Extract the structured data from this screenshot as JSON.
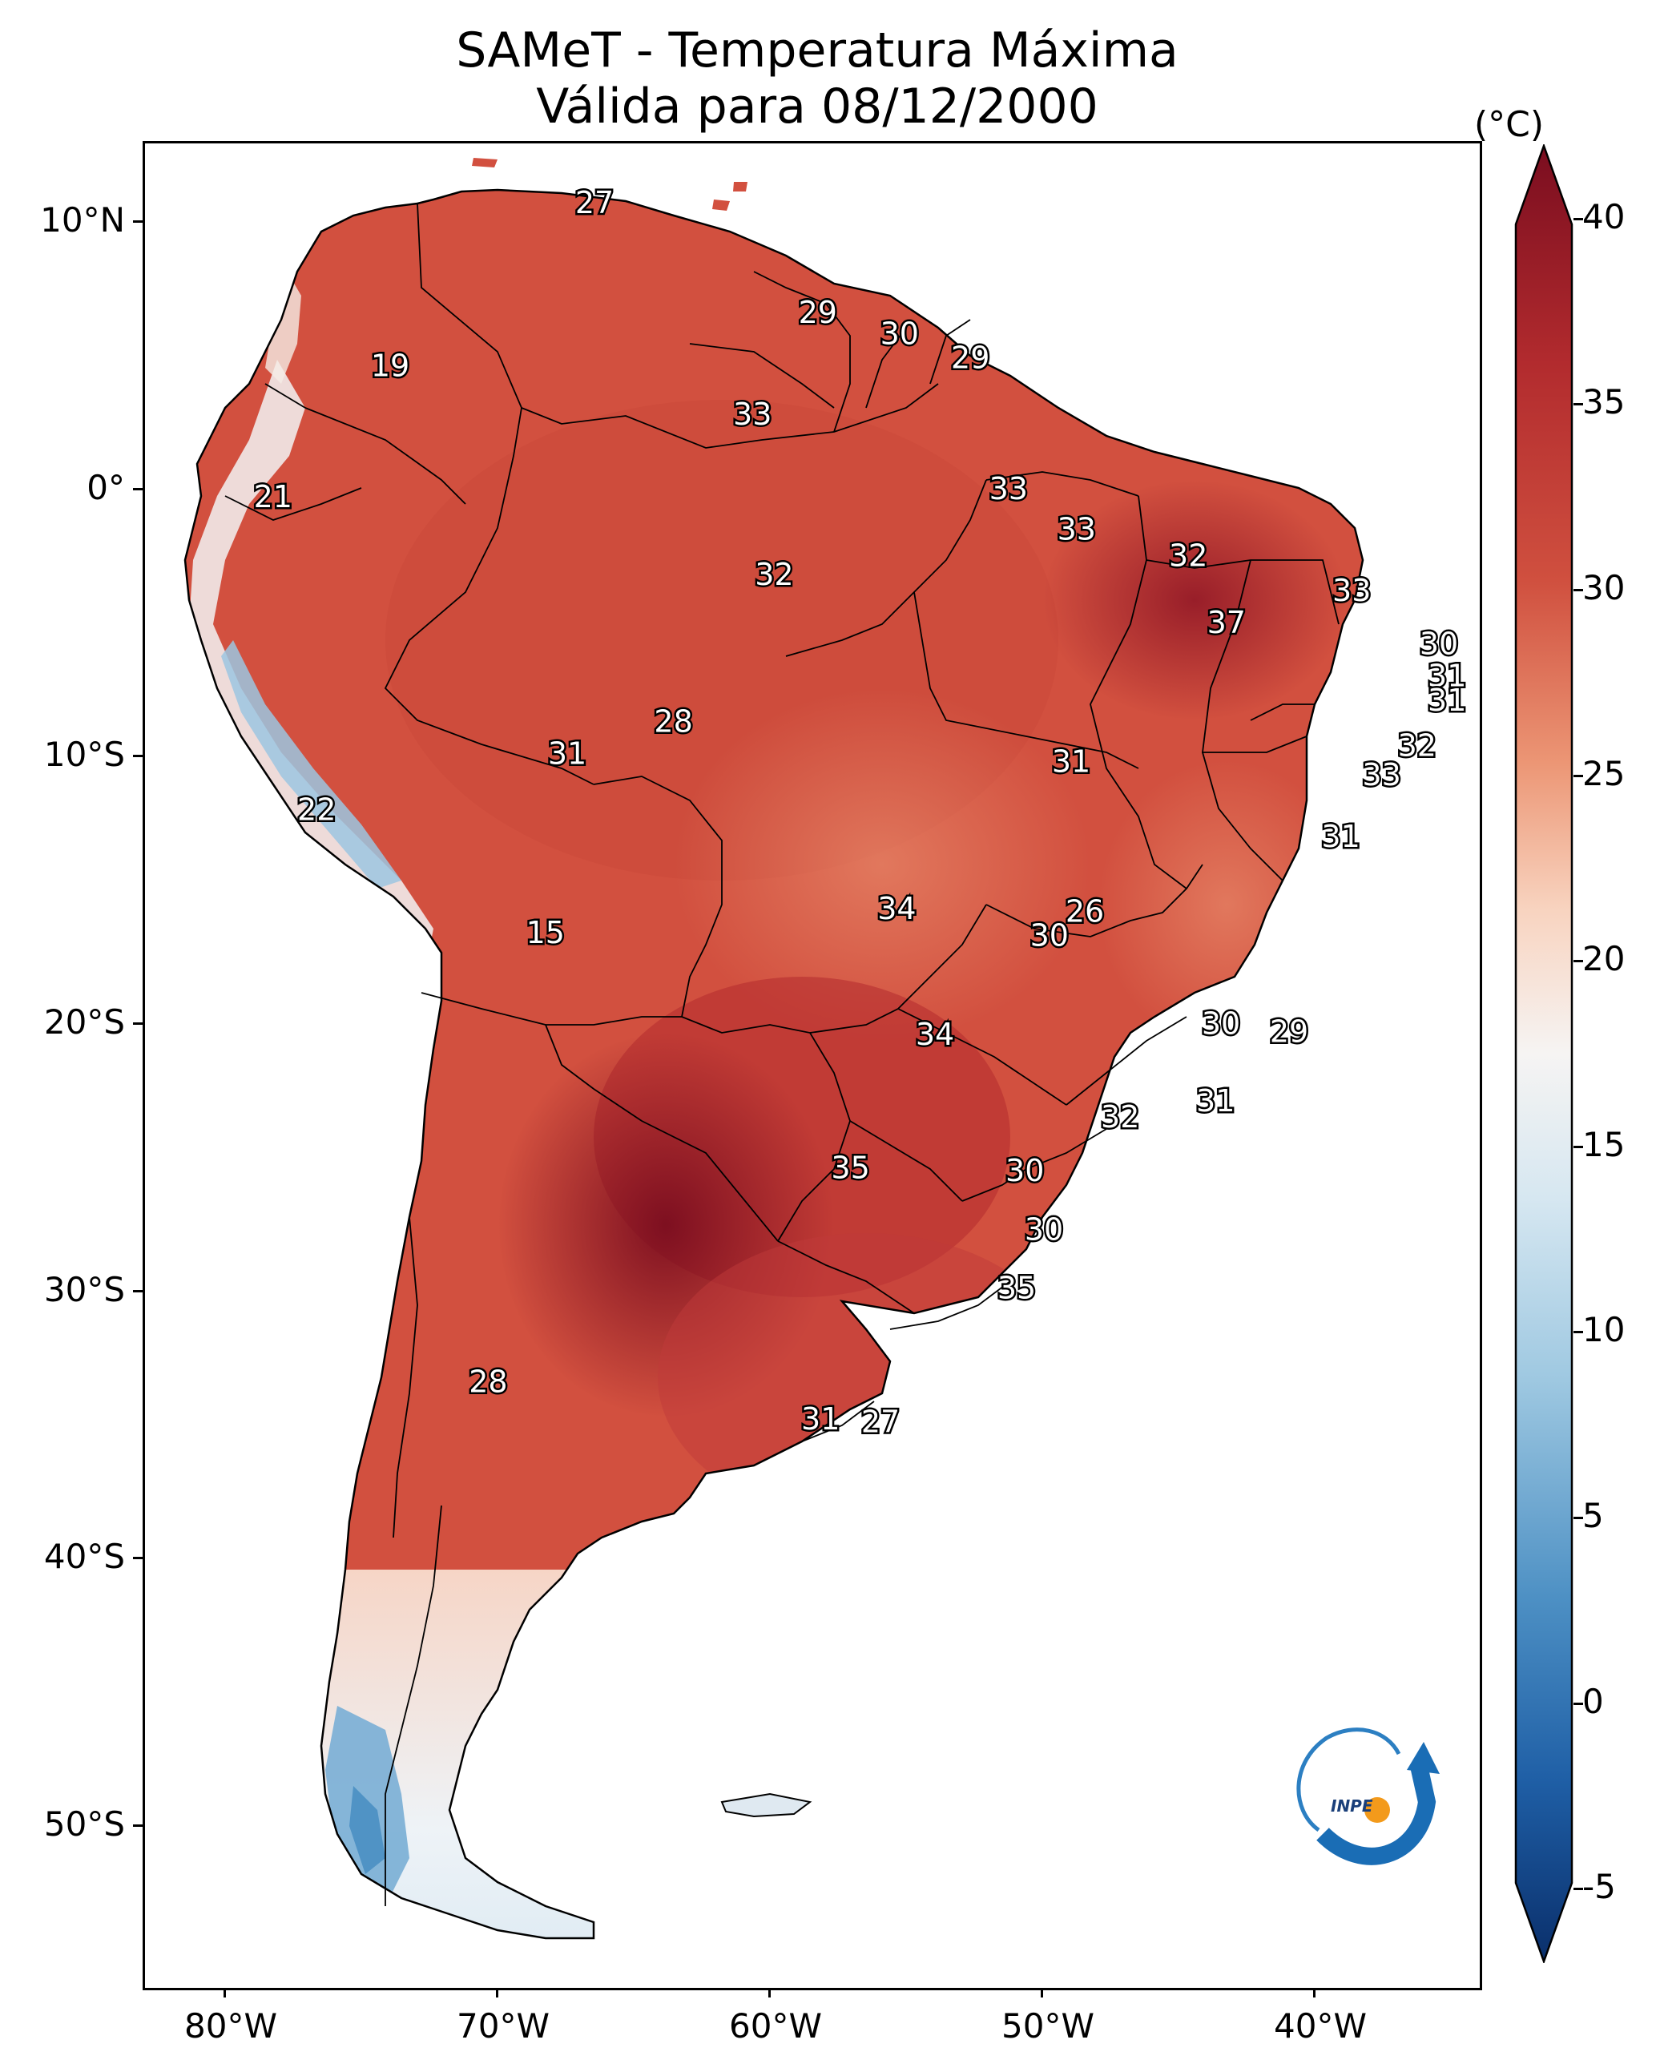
{
  "title_line1": "SAMeT - Temperatura Máxima",
  "title_line2": "Válida para 08/12/2000",
  "colorbar": {
    "unit": "(°C)",
    "ticks": [
      "40",
      "35",
      "30",
      "25",
      "20",
      "15",
      "10",
      "5",
      "0",
      "-5"
    ],
    "min": -7,
    "max": 42,
    "colors": [
      "#0a2f6b",
      "#1f5fa6",
      "#4a8fc3",
      "#9cc6e0",
      "#e6eff6",
      "#fbe8dd",
      "#f3b99a",
      "#e1765c",
      "#c63b34",
      "#7a0d1f"
    ]
  },
  "longitude_labels": [
    "80°W",
    "70°W",
    "60°W",
    "50°W",
    "40°W"
  ],
  "latitude_labels": [
    "10°N",
    "0°",
    "10°S",
    "20°S",
    "30°S",
    "40°S",
    "50°S"
  ],
  "extent": {
    "lon_min": -83,
    "lon_max": -34,
    "lat_min": -56,
    "lat_max": 13
  },
  "point_labels": [
    {
      "text": "27",
      "lon": -66.5,
      "lat": 10.7
    },
    {
      "text": "19",
      "lon": -74.0,
      "lat": 4.6
    },
    {
      "text": "29",
      "lon": -58.3,
      "lat": 6.6
    },
    {
      "text": "30",
      "lon": -55.3,
      "lat": 5.8
    },
    {
      "text": "29",
      "lon": -52.7,
      "lat": 4.9
    },
    {
      "text": "33",
      "lon": -60.7,
      "lat": 2.8
    },
    {
      "text": "21",
      "lon": -78.3,
      "lat": -0.3
    },
    {
      "text": "33",
      "lon": -51.3,
      "lat": 0.0
    },
    {
      "text": "33",
      "lon": -48.8,
      "lat": -1.5
    },
    {
      "text": "32",
      "lon": -59.9,
      "lat": -3.2
    },
    {
      "text": "32",
      "lon": -44.7,
      "lat": -2.5
    },
    {
      "text": "33",
      "lon": -38.7,
      "lat": -3.8
    },
    {
      "text": "37",
      "lon": -43.3,
      "lat": -5.0
    },
    {
      "text": "30",
      "lon": -35.5,
      "lat": -5.8
    },
    {
      "text": "31",
      "lon": -35.2,
      "lat": -7.0
    },
    {
      "text": "31",
      "lon": -35.2,
      "lat": -7.9
    },
    {
      "text": "28",
      "lon": -63.6,
      "lat": -8.7
    },
    {
      "text": "31",
      "lon": -67.5,
      "lat": -9.9
    },
    {
      "text": "31",
      "lon": -49.0,
      "lat": -10.2
    },
    {
      "text": "32",
      "lon": -36.3,
      "lat": -9.6
    },
    {
      "text": "33",
      "lon": -37.6,
      "lat": -10.7
    },
    {
      "text": "22",
      "lon": -76.7,
      "lat": -12.0
    },
    {
      "text": "31",
      "lon": -39.1,
      "lat": -13.0
    },
    {
      "text": "34",
      "lon": -55.4,
      "lat": -15.7
    },
    {
      "text": "26",
      "lon": -48.5,
      "lat": -15.8
    },
    {
      "text": "30",
      "lon": -49.8,
      "lat": -16.7
    },
    {
      "text": "15",
      "lon": -68.3,
      "lat": -16.6
    },
    {
      "text": "30",
      "lon": -43.5,
      "lat": -20.0
    },
    {
      "text": "29",
      "lon": -41.0,
      "lat": -20.3
    },
    {
      "text": "34",
      "lon": -54.0,
      "lat": -20.4
    },
    {
      "text": "31",
      "lon": -43.7,
      "lat": -22.9
    },
    {
      "text": "32",
      "lon": -47.2,
      "lat": -23.5
    },
    {
      "text": "35",
      "lon": -57.1,
      "lat": -25.4
    },
    {
      "text": "30",
      "lon": -50.7,
      "lat": -25.5
    },
    {
      "text": "30",
      "lon": -50.0,
      "lat": -27.7
    },
    {
      "text": "35",
      "lon": -51.0,
      "lat": -29.9
    },
    {
      "text": "28",
      "lon": -70.4,
      "lat": -33.4
    },
    {
      "text": "31",
      "lon": -58.2,
      "lat": -34.8
    },
    {
      "text": "27",
      "lon": -56.0,
      "lat": -34.9
    }
  ]
}
